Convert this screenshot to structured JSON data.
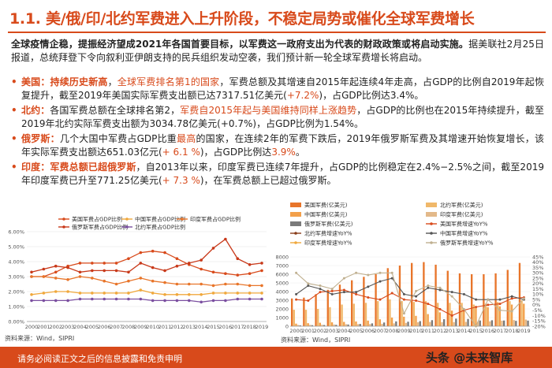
{
  "title": "1.1. 美/俄/印/北约军费进入上升阶段，不稳定局势或催化全球军费增长",
  "intro": {
    "lead": "全球疫情企稳，提振经济望成2021年各国首要目标，以军费这一政府支出为代表的财政政策或将启动实施。",
    "rest": "据美联社2月25日报道，总统拜登下令向叙利亚伊朗支持的民兵组织发动空袭，我们预计新一轮全球军费增长将启动。"
  },
  "bullets": [
    {
      "label": "美国：",
      "highlight": "持续历史新高",
      "parts": [
        {
          "t": "，",
          "c": ""
        },
        {
          "t": "全球军费排名第1的国家",
          "c": "hlr"
        },
        {
          "t": "，军费总额及其增速自2015年起连续4年走高，占GDP的比例自2019年起恢复提升，截至2019年美国实际军费支出额已达7317.51亿美元(",
          "c": ""
        },
        {
          "t": "+7.2%",
          "c": "hlr"
        },
        {
          "t": ")，占GDP比例达3.4%。",
          "c": ""
        }
      ]
    },
    {
      "label": "北约：",
      "highlight": "",
      "parts": [
        {
          "t": "各国军费总额在全球排名第2，",
          "c": ""
        },
        {
          "t": "军费自2015年起与美国维持同样上涨趋势",
          "c": "hlr"
        },
        {
          "t": "，占GDP的比例也在2015年持续提升，截至2019年北约实际军费支出额为3034.78亿美元(+0.7%)，占GDP比例为1.54%。",
          "c": ""
        }
      ]
    },
    {
      "label": "俄罗斯：",
      "highlight": "",
      "parts": [
        {
          "t": "几个大国中军费占GDP比重",
          "c": ""
        },
        {
          "t": "最高",
          "c": "hlr"
        },
        {
          "t": "的国家，在连续2年的军费下跌后，2019年俄罗斯军费及其增速开始恢复增长，该年实际军费支出额达651.03亿元(",
          "c": ""
        },
        {
          "t": "+ 6.1 %",
          "c": "hlr"
        },
        {
          "t": ")，占GDP比例达",
          "c": ""
        },
        {
          "t": "3.9%",
          "c": "hlr"
        },
        {
          "t": "。",
          "c": ""
        }
      ]
    },
    {
      "label": "印度：",
      "highlight": "军费总额已超俄罗斯",
      "parts": [
        {
          "t": "，自2013年以来，印度军费已连续7年提升，占GDP的比例稳定在2.4%−2.5%之间，截至2019年印度军费已升至771.25亿美元(",
          "c": ""
        },
        {
          "t": "+ 7.3 %",
          "c": "hlr"
        },
        {
          "t": ")，在军费总额上已超过俄罗斯。",
          "c": ""
        }
      ]
    }
  ],
  "chart_left": {
    "type": "line",
    "categories": [
      "2000",
      "2001",
      "2002",
      "2003",
      "2004",
      "2005",
      "2006",
      "2007",
      "2008",
      "2009",
      "2010",
      "2011",
      "2012",
      "2013",
      "2014",
      "2015",
      "2016",
      "2017",
      "2018",
      "2019"
    ],
    "ylim": [
      0,
      6
    ],
    "yticks": [
      "0.00%",
      "1.00%",
      "2.00%",
      "3.00%",
      "4.00%",
      "5.00%",
      "6.00%"
    ],
    "colors": {
      "usa": "#d84a1b",
      "china": "#f0a83c",
      "india": "#e8752a",
      "russia": "#c8391a",
      "nato": "#7b4fa0"
    },
    "series": [
      {
        "name": "美国军费占GDP比例",
        "key": "usa",
        "values": [
          3.0,
          3.0,
          3.3,
          3.7,
          3.9,
          3.9,
          3.9,
          3.9,
          4.2,
          4.6,
          4.7,
          4.6,
          4.2,
          3.8,
          3.5,
          3.3,
          3.2,
          3.1,
          3.2,
          3.4
        ]
      },
      {
        "name": "中国军费占GDP比例",
        "key": "china",
        "values": [
          1.8,
          1.9,
          2.0,
          2.0,
          1.9,
          1.9,
          1.9,
          1.9,
          1.9,
          2.1,
          1.9,
          1.8,
          1.8,
          1.8,
          1.8,
          1.9,
          1.9,
          1.9,
          1.9,
          1.9
        ]
      },
      {
        "name": "印度军费占GDP比例",
        "key": "india",
        "values": [
          3.0,
          3.0,
          2.9,
          2.8,
          3.0,
          2.9,
          2.7,
          2.5,
          2.7,
          2.9,
          2.7,
          2.6,
          2.5,
          2.5,
          2.5,
          2.4,
          2.5,
          2.5,
          2.4,
          2.4
        ]
      },
      {
        "name": "俄罗斯军费占GDP比例",
        "key": "russia",
        "values": [
          3.3,
          3.5,
          3.7,
          3.6,
          3.3,
          3.4,
          3.4,
          3.4,
          3.3,
          3.9,
          3.6,
          3.4,
          3.7,
          3.9,
          4.1,
          4.9,
          5.5,
          4.2,
          3.8,
          3.9
        ]
      },
      {
        "name": "北约军费占GDP比例",
        "key": "nato",
        "values": [
          1.4,
          1.4,
          1.4,
          1.4,
          1.5,
          1.5,
          1.5,
          1.5,
          1.5,
          1.5,
          1.4,
          1.4,
          1.4,
          1.4,
          1.3,
          1.4,
          1.4,
          1.5,
          1.5,
          1.5
        ]
      }
    ]
  },
  "chart_right": {
    "type": "bar",
    "categories": [
      "2000",
      "2001",
      "2002",
      "2003",
      "2004",
      "2005",
      "2006",
      "2007",
      "2008",
      "2009",
      "2010",
      "2011",
      "2012",
      "2013",
      "2014",
      "2015",
      "2016",
      "2017",
      "2018",
      "2019"
    ],
    "ylim_left": [
      0,
      8000
    ],
    "yticks_left": [
      "0",
      "1000",
      "2000",
      "3000",
      "4000",
      "5000",
      "6000",
      "7000",
      "8000"
    ],
    "yticks_right": [
      "-20%",
      "-15%",
      "-10%",
      "-5%",
      "0%",
      "5%",
      "10%",
      "15%",
      "20%",
      "25%",
      "30%",
      "35%",
      "40%",
      "45%"
    ],
    "legend": [
      {
        "name": "美国军费(亿美元)",
        "color": "#e8752a",
        "kind": "bar"
      },
      {
        "name": "北约军费(亿美元)",
        "color": "#f0b86a",
        "kind": "bar"
      },
      {
        "name": "中国军费(亿美元)",
        "color": "#f3a04a",
        "kind": "bar"
      },
      {
        "name": "印度军费(亿美元)",
        "color": "#e3b98a",
        "kind": "bar"
      },
      {
        "name": "俄罗斯军费(亿美元)",
        "color": "#7a7a7a",
        "kind": "bar"
      },
      {
        "name": "美国军费增速YoY%",
        "color": "#d84a1b",
        "kind": "line"
      },
      {
        "name": "北约军费增速YoY%",
        "color": "#8a3d1a",
        "kind": "line"
      },
      {
        "name": "中国军费增速YoY%",
        "color": "#555555",
        "kind": "line"
      },
      {
        "name": "印度军费增速YoY%",
        "color": "#f0a83c",
        "kind": "line"
      },
      {
        "name": "俄罗斯军费增速YoY%",
        "color": "#c0b090",
        "kind": "line"
      }
    ],
    "usa_values": [
      3200,
      3300,
      3700,
      4200,
      4800,
      5300,
      5700,
      6000,
      6700,
      7000,
      7300,
      7400,
      7100,
      6400,
      6100,
      6000,
      6000,
      6100,
      6500,
      7300
    ],
    "nato_values": [
      1900,
      1900,
      2000,
      2200,
      2500,
      2600,
      2700,
      2900,
      3100,
      2900,
      2800,
      2900,
      2700,
      2700,
      2700,
      2500,
      2600,
      2800,
      2900,
      3000
    ],
    "china_values": [
      300,
      350,
      400,
      450,
      500,
      550,
      650,
      800,
      1000,
      1100,
      1200,
      1400,
      1600,
      1800,
      2000,
      2100,
      2200,
      2300,
      2500,
      2600
    ],
    "india_values": [
      150,
      160,
      170,
      200,
      230,
      240,
      250,
      280,
      330,
      380,
      460,
      490,
      470,
      470,
      500,
      510,
      560,
      640,
      710,
      770
    ],
    "russia_values": [
      100,
      120,
      140,
      160,
      200,
      260,
      330,
      430,
      560,
      520,
      590,
      700,
      810,
      880,
      840,
      660,
      690,
      660,
      620,
      650
    ],
    "usa_yoy": [
      5,
      4,
      12,
      13,
      14,
      10,
      7,
      5,
      11,
      5,
      4,
      1,
      -4,
      -10,
      -5,
      -2,
      0,
      1,
      6,
      7
    ],
    "china_yoy": [
      10,
      18,
      15,
      10,
      12,
      12,
      17,
      22,
      25,
      10,
      8,
      16,
      14,
      12,
      10,
      5,
      5,
      5,
      8,
      5
    ],
    "russia_yoy": [
      30,
      20,
      18,
      15,
      25,
      30,
      28,
      30,
      30,
      -8,
      13,
      18,
      16,
      8,
      -4,
      -20,
      5,
      -5,
      -6,
      6
    ]
  },
  "source_left": "资料来源：Wind，SIPRI",
  "source_right": "资料来源：Wind，SIPRI",
  "footer": "请务必阅读正文之后的信息披露和免责申明",
  "watermark": "头条 @未来智库"
}
